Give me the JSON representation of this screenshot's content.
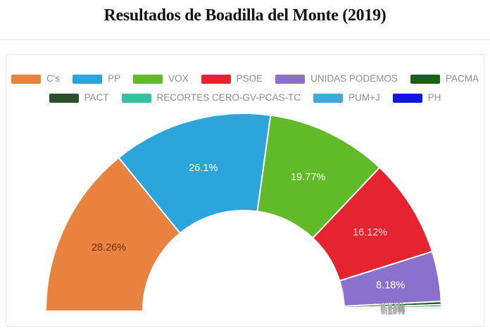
{
  "page": {
    "title": "Resultados de Boadilla del Monte (2019)"
  },
  "chart_data": {
    "type": "pie",
    "variant": "half-donut",
    "title": "Resultados de Boadilla del Monte (2019)",
    "unit": "%",
    "legend_position": "top",
    "series": [
      {
        "name": "C's",
        "value": 28.26,
        "label": "28.26%",
        "color": "#e8823e",
        "label_color": "#7c2d0e"
      },
      {
        "name": "PP",
        "value": 26.1,
        "label": "26.1%",
        "color": "#2ba5db",
        "label_color": "#ffffff"
      },
      {
        "name": "VOX",
        "value": 19.77,
        "label": "19.77%",
        "color": "#61ba28",
        "label_color": "#ffffff"
      },
      {
        "name": "PSOE",
        "value": 16.12,
        "label": "16.12%",
        "color": "#e62430",
        "label_color": "#f6dadb"
      },
      {
        "name": "UNIDAS PODEMOS",
        "value": 8.18,
        "label": "8.18%",
        "color": "#8c70ce",
        "label_color": "#ffffff"
      },
      {
        "name": "PACMA",
        "value": 0.52,
        "label": "0.52%",
        "color": "#156515",
        "label_color": "#ffffff"
      },
      {
        "name": "PACT",
        "value": 0.34,
        "label": "0.34%",
        "color": "#2e4f2e",
        "label_color": "#ffffff"
      },
      {
        "name": "RECORTES CERO-GV-PCAS-TC",
        "value": 0.29,
        "label": "0.29%",
        "color": "#35c2a0",
        "label_color": "#ffffff"
      },
      {
        "name": "PUM+J",
        "value": 0.23,
        "label": "0.23%",
        "color": "#3fa9da",
        "label_color": "#ffffff"
      },
      {
        "name": "PH",
        "value": 0.19,
        "label": "0.19%",
        "color": "#1316dc",
        "label_color": "#ffffff"
      }
    ],
    "legend_rows": [
      [
        0,
        1,
        2,
        3,
        4,
        5
      ],
      [
        6,
        7,
        8,
        9
      ]
    ]
  }
}
